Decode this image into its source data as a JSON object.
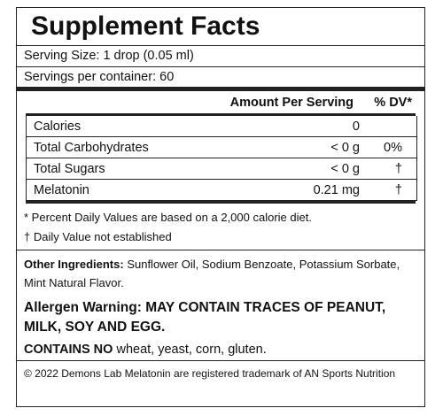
{
  "title": "Supplement Facts",
  "serving_size": "Serving Size: 1 drop (0.05 ml)",
  "servings_per_container": "Servings per container: 60",
  "table": {
    "header": [
      "Amount Per Serving",
      "% DV*"
    ],
    "rows": [
      [
        "Calories",
        "0"
      ],
      [
        "Total Carbohydrates",
        "< 0 g",
        "0%"
      ],
      [
        "Total Sugars",
        "< 0 g",
        "†"
      ],
      [
        "Melatonin",
        "0.21 mg",
        "†"
      ]
    ]
  },
  "footnotes": [
    "* Percent Daily Values are based on a 2,000 calorie diet.",
    "† Daily Value not established"
  ],
  "other_ingredients": {
    "label": "Other Ingredients:",
    "text": "Sunflower Oil, Sodium Benzoate, Potassium Sorbate, Mint Natural Flavor."
  },
  "allergen_warning": {
    "label": "Allergen Warning:",
    "text": "MAY CONTAIN TRACES OF PEANUT, MILK, SOY AND EGG."
  },
  "contains_no": {
    "label": "CONTAINS NO",
    "text": "wheat, yeast, corn, gluten."
  },
  "copyright": "© 2022 Demons Lab Melatonin are registered trademark of AN Sports Nutrition"
}
